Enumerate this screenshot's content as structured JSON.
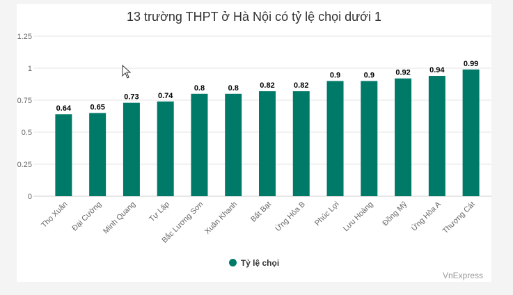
{
  "chart_data": {
    "type": "bar",
    "title": "13 trường THPT ở Hà Nội có tỷ lệ chọi dưới 1",
    "categories": [
      "Thọ Xuân",
      "Đại Cường",
      "Minh Quang",
      "Tự Lập",
      "Bắc Lương Sơn",
      "Xuân Khanh",
      "Bất Bạt",
      "Ứng Hòa B",
      "Phúc Lợi",
      "Lưu Hoàng",
      "Đồng Mỹ",
      "Ứng Hòa A",
      "Thượng Cát"
    ],
    "series": [
      {
        "name": "Tỷ lệ chọi",
        "values": [
          0.64,
          0.65,
          0.73,
          0.74,
          0.8,
          0.8,
          0.82,
          0.82,
          0.9,
          0.9,
          0.92,
          0.94,
          0.99
        ]
      }
    ],
    "y_ticks": [
      "0",
      "0.25",
      "0.5",
      "0.75",
      "1",
      "1.25"
    ],
    "ylim": [
      0,
      1.25
    ],
    "grid": true,
    "legend_position": "bottom",
    "bar_color": "#007a68",
    "credit": "VnExpress"
  }
}
